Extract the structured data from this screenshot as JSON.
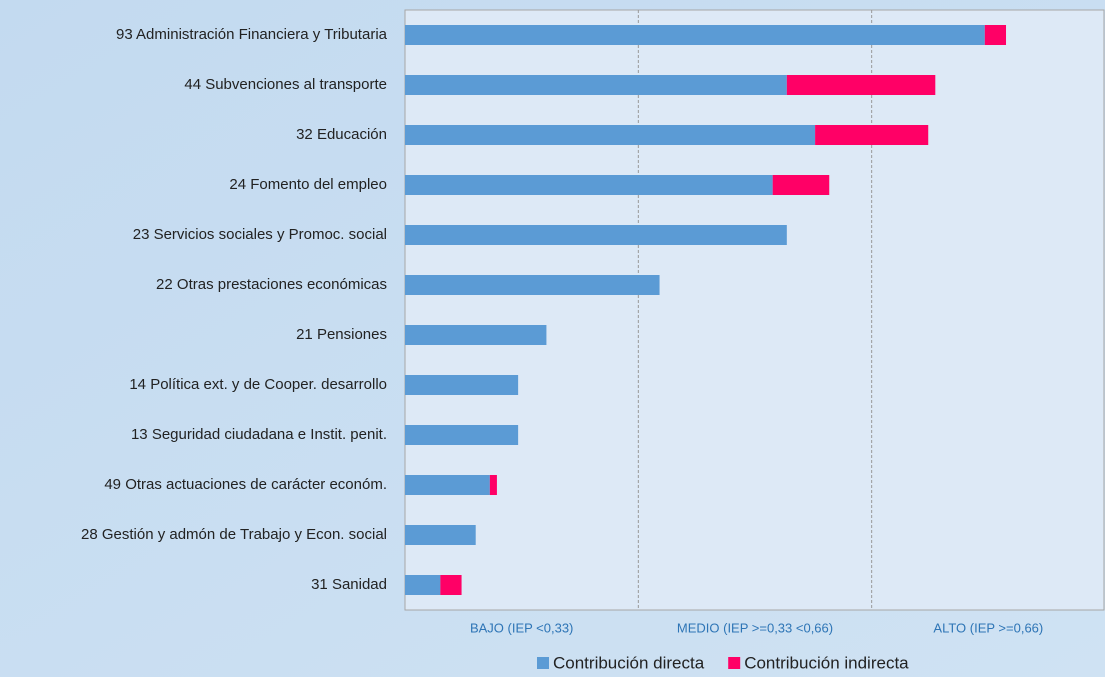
{
  "chart_data": {
    "type": "bar",
    "orientation": "horizontal",
    "stacked": true,
    "categories": [
      "93 Administración Financiera y Tributaria",
      "44 Subvenciones al transporte",
      "32 Educación",
      "24 Fomento del empleo",
      "23 Servicios sociales y Promoc. social",
      "22 Otras prestaciones económicas",
      "21 Pensiones",
      "14 Política ext. y de Cooper. desarrollo",
      "13 Seguridad ciudadana e Instit. penit.",
      "49 Otras actuaciones de carácter económ.",
      "28 Gestión y admón de Trabajo y Econ. social",
      "31 Sanidad"
    ],
    "series": [
      {
        "name": "Contribución directa",
        "color": "#5b9bd5",
        "values": [
          0.82,
          0.54,
          0.58,
          0.52,
          0.54,
          0.36,
          0.2,
          0.16,
          0.16,
          0.12,
          0.1,
          0.05
        ]
      },
      {
        "name": "Contribución indirecta",
        "color": "#ff0066",
        "values": [
          0.03,
          0.21,
          0.16,
          0.08,
          0,
          0,
          0,
          0,
          0,
          0.01,
          0,
          0.03
        ]
      }
    ],
    "xlim": [
      0,
      0.99
    ],
    "xticks": [
      0.33,
      0.66
    ],
    "zones": [
      "BAJO (IEP <0,33)",
      "MEDIO (IEP >=0,33 <0,66)",
      "ALTO (IEP >=0,66)"
    ],
    "legend": "bottom"
  }
}
